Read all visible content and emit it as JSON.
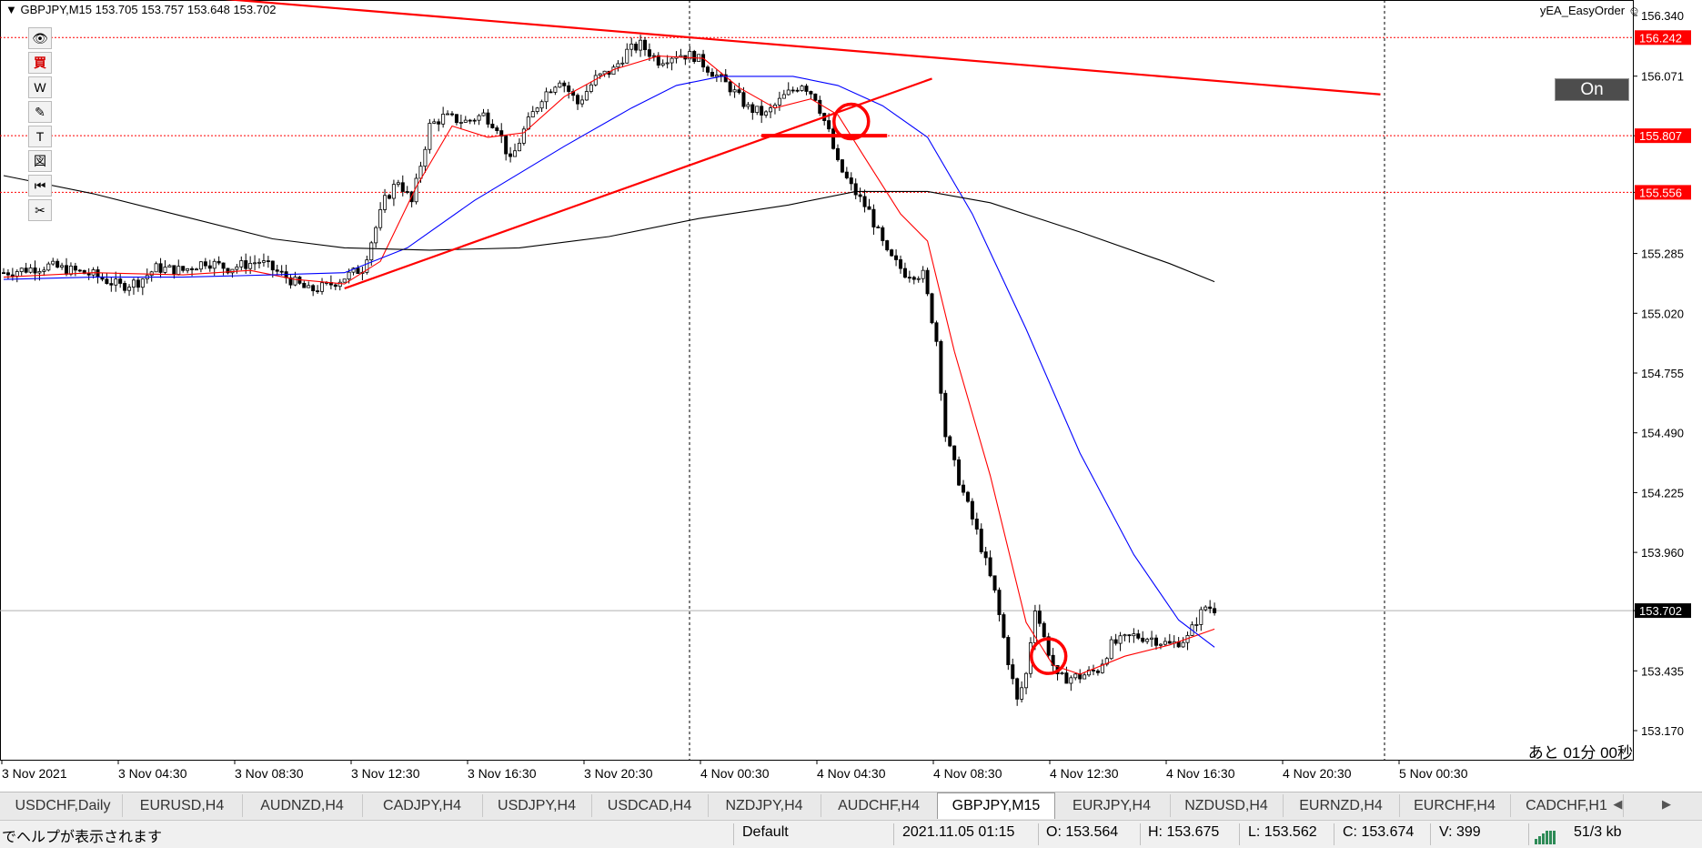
{
  "header": {
    "symbol_info": "GBPJPY,M15  153.705 153.757 153.648 153.702"
  },
  "ea": {
    "name": "yEA_EasyOrder",
    "button_label": "On"
  },
  "toolbar": [
    "👁",
    "買",
    "W",
    "✎",
    "T",
    "図",
    "⏮",
    "✂"
  ],
  "countdown": "あと 01分 00秒",
  "chart_data": {
    "type": "candlestick",
    "symbol": "GBPJPY",
    "timeframe": "M15",
    "ylim": [
      153.05,
      156.42
    ],
    "y_ticks": [
      "156.340",
      "156.071",
      "155.807",
      "155.556",
      "155.285",
      "155.020",
      "154.755",
      "154.490",
      "154.225",
      "153.960",
      "153.702",
      "153.435",
      "153.170"
    ],
    "x_ticks": [
      "3 Nov 2021",
      "3 Nov 04:30",
      "3 Nov 08:30",
      "3 Nov 12:30",
      "3 Nov 16:30",
      "3 Nov 20:30",
      "4 Nov 00:30",
      "4 Nov 04:30",
      "4 Nov 08:30",
      "4 Nov 12:30",
      "4 Nov 16:30",
      "4 Nov 20:30",
      "5 Nov 00:30"
    ],
    "price_labels": [
      {
        "value": 156.242,
        "text": "156.242",
        "color": "#ff0000"
      },
      {
        "value": 155.807,
        "text": "155.807",
        "color": "#ff0000"
      },
      {
        "value": 155.556,
        "text": "155.556",
        "color": "#ff0000"
      },
      {
        "value": 153.702,
        "text": "153.702",
        "color": "#000000"
      }
    ],
    "hlines": [
      156.242,
      155.807,
      155.556
    ],
    "bid_line": 153.702,
    "vlines_period_separators": [
      "4 Nov 00:00",
      "5 Nov 00:00"
    ],
    "close_path": [
      [
        0,
        155.2
      ],
      [
        10,
        155.23
      ],
      [
        20,
        155.19
      ],
      [
        26,
        155.14
      ],
      [
        30,
        155.16
      ],
      [
        34,
        155.22
      ],
      [
        40,
        155.21
      ],
      [
        45,
        155.25
      ],
      [
        50,
        155.22
      ],
      [
        57,
        155.25
      ],
      [
        63,
        155.18
      ],
      [
        68,
        155.12
      ],
      [
        72,
        155.14
      ],
      [
        76,
        155.18
      ],
      [
        80,
        155.22
      ],
      [
        85,
        155.52
      ],
      [
        88,
        155.61
      ],
      [
        91,
        155.51
      ],
      [
        95,
        155.85
      ],
      [
        98,
        155.89
      ],
      [
        103,
        155.87
      ],
      [
        107,
        155.9
      ],
      [
        110,
        155.85
      ],
      [
        113,
        155.69
      ],
      [
        116,
        155.83
      ],
      [
        120,
        155.98
      ],
      [
        124,
        156.06
      ],
      [
        128,
        155.95
      ],
      [
        132,
        156.06
      ],
      [
        136,
        156.1
      ],
      [
        139,
        156.18
      ],
      [
        142,
        156.21
      ],
      [
        146,
        156.14
      ],
      [
        150,
        156.17
      ],
      [
        154,
        156.16
      ],
      [
        158,
        156.09
      ],
      [
        162,
        156.02
      ],
      [
        166,
        155.93
      ],
      [
        170,
        155.9
      ],
      [
        174,
        155.98
      ],
      [
        178,
        156.04
      ],
      [
        181,
        155.98
      ],
      [
        184,
        155.82
      ],
      [
        186,
        155.68
      ],
      [
        189,
        155.58
      ],
      [
        193,
        155.47
      ],
      [
        197,
        155.28
      ],
      [
        201,
        155.2
      ],
      [
        205,
        155.19
      ],
      [
        208,
        154.9
      ],
      [
        210,
        154.48
      ],
      [
        213,
        154.28
      ],
      [
        217,
        154.05
      ],
      [
        221,
        153.78
      ],
      [
        224,
        153.48
      ],
      [
        226,
        153.3
      ],
      [
        228,
        153.42
      ],
      [
        230,
        153.72
      ],
      [
        232,
        153.58
      ],
      [
        235,
        153.4
      ],
      [
        240,
        153.41
      ],
      [
        244,
        153.44
      ],
      [
        247,
        153.55
      ],
      [
        252,
        153.59
      ],
      [
        256,
        153.58
      ],
      [
        260,
        153.55
      ],
      [
        264,
        153.58
      ],
      [
        266,
        153.66
      ],
      [
        268,
        153.72
      ],
      [
        270,
        153.71
      ]
    ],
    "series": [
      {
        "type": "ma",
        "color": "#ff0000",
        "points": [
          [
            0,
            155.18
          ],
          [
            20,
            155.2
          ],
          [
            40,
            155.19
          ],
          [
            55,
            155.21
          ],
          [
            65,
            155.17
          ],
          [
            76,
            155.15
          ],
          [
            84,
            155.25
          ],
          [
            92,
            155.58
          ],
          [
            100,
            155.85
          ],
          [
            108,
            155.8
          ],
          [
            116,
            155.82
          ],
          [
            125,
            155.98
          ],
          [
            136,
            156.1
          ],
          [
            146,
            156.16
          ],
          [
            156,
            156.15
          ],
          [
            164,
            156.02
          ],
          [
            172,
            155.93
          ],
          [
            180,
            155.97
          ],
          [
            186,
            155.9
          ],
          [
            192,
            155.71
          ],
          [
            200,
            155.46
          ],
          [
            206,
            155.34
          ],
          [
            212,
            154.85
          ],
          [
            220,
            154.3
          ],
          [
            228,
            153.65
          ],
          [
            234,
            153.46
          ],
          [
            240,
            153.42
          ],
          [
            250,
            153.5
          ],
          [
            260,
            153.55
          ],
          [
            270,
            153.62
          ]
        ]
      },
      {
        "type": "ma",
        "color": "#0000ff",
        "points": [
          [
            0,
            155.17
          ],
          [
            20,
            155.18
          ],
          [
            40,
            155.18
          ],
          [
            60,
            155.19
          ],
          [
            76,
            155.2
          ],
          [
            90,
            155.31
          ],
          [
            105,
            155.52
          ],
          [
            125,
            155.76
          ],
          [
            140,
            155.93
          ],
          [
            150,
            156.03
          ],
          [
            160,
            156.07
          ],
          [
            176,
            156.07
          ],
          [
            186,
            156.03
          ],
          [
            196,
            155.94
          ],
          [
            206,
            155.8
          ],
          [
            216,
            155.46
          ],
          [
            228,
            154.95
          ],
          [
            240,
            154.4
          ],
          [
            252,
            153.95
          ],
          [
            262,
            153.66
          ],
          [
            270,
            153.54
          ]
        ]
      },
      {
        "type": "ma",
        "color": "#000000",
        "points": [
          [
            0,
            155.63
          ],
          [
            20,
            155.55
          ],
          [
            40,
            155.45
          ],
          [
            60,
            155.35
          ],
          [
            76,
            155.31
          ],
          [
            95,
            155.3
          ],
          [
            115,
            155.31
          ],
          [
            135,
            155.36
          ],
          [
            155,
            155.44
          ],
          [
            175,
            155.5
          ],
          [
            190,
            155.56
          ],
          [
            206,
            155.56
          ],
          [
            220,
            155.51
          ],
          [
            240,
            155.38
          ],
          [
            260,
            155.24
          ],
          [
            270,
            155.16
          ]
        ]
      }
    ],
    "trendlines": [
      {
        "from": [
          45,
          156.42
        ],
        "to": [
          307,
          155.99
        ],
        "color": "#ff0000"
      },
      {
        "from": [
          76,
          155.13
        ],
        "to": [
          207,
          156.06
        ],
        "color": "#ff0000"
      },
      {
        "from": [
          169,
          155.807
        ],
        "to": [
          197,
          155.807
        ],
        "color": "#ff0000"
      }
    ],
    "circles": [
      {
        "x": 189,
        "y": 155.87,
        "color": "#ff0000"
      },
      {
        "x": 233,
        "y": 153.5,
        "color": "#ff0000"
      }
    ]
  },
  "tabs": [
    "USDCHF,Daily",
    "EURUSD,H4",
    "AUDNZD,H4",
    "CADJPY,H4",
    "USDJPY,H4",
    "USDCAD,H4",
    "NZDJPY,H4",
    "AUDCHF,H4",
    "GBPJPY,M15",
    "EURJPY,H4",
    "NZDUSD,H4",
    "EURNZD,H4",
    "EURCHF,H4",
    "CADCHF,H1"
  ],
  "active_tab": "GBPJPY,M15",
  "tab_arrows": "◀ ▶",
  "status": {
    "help": "でヘルプが表示されます",
    "profile": "Default",
    "datetime": "2021.11.05 01:15",
    "open": "O: 153.564",
    "high": "H: 153.675",
    "low": "L: 153.562",
    "close": "C: 153.674",
    "volume": "V: 399",
    "traffic": "51/3 kb"
  }
}
